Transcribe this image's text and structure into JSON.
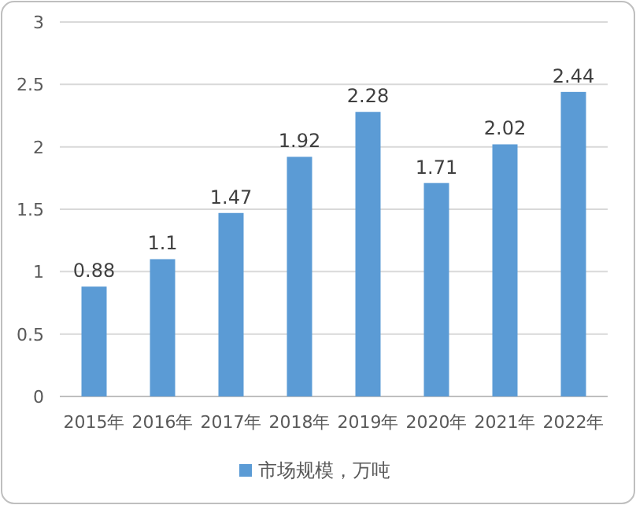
{
  "chart_data": {
    "type": "bar",
    "categories": [
      "2015年",
      "2016年",
      "2017年",
      "2018年",
      "2019年",
      "2020年",
      "2021年",
      "2022年"
    ],
    "series": [
      {
        "name": "市场规模，万吨",
        "color": "#5b9bd5",
        "values": [
          0.88,
          1.1,
          1.47,
          1.92,
          2.28,
          1.71,
          2.02,
          2.44
        ]
      }
    ],
    "ylim": [
      0,
      3
    ],
    "yticks": [
      0,
      0.5,
      1,
      1.5,
      2,
      2.5,
      3
    ],
    "grid": "y",
    "legend": "bottom",
    "data_labels": true
  }
}
